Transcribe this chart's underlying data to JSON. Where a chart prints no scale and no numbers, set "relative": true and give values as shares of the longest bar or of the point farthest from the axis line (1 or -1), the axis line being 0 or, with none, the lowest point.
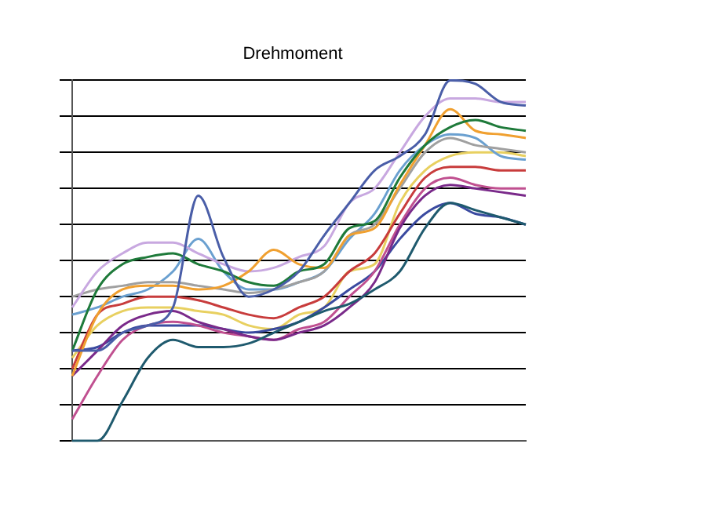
{
  "chart_data": {
    "type": "line",
    "title": "Drehmoment",
    "relative": true,
    "grid": "y",
    "legend": false,
    "categories": [
      null,
      null,
      null,
      null,
      null,
      null,
      null,
      null,
      null,
      null,
      null,
      null,
      null,
      null,
      null,
      null,
      null,
      null,
      null
    ],
    "series": [
      {
        "color": "#4a5ea8",
        "values": [
          0.25,
          0.25,
          0.3,
          0.32,
          0.37,
          0.68,
          0.51,
          0.4,
          0.42,
          0.47,
          0.57,
          0.66,
          0.75,
          0.79,
          0.85,
          1.0,
          0.99,
          0.94,
          0.93
        ]
      },
      {
        "color": "#1f5a6e",
        "values": [
          0.0,
          0.0,
          0.11,
          0.23,
          0.28,
          0.26,
          0.26,
          0.27,
          0.3,
          0.33,
          0.36,
          0.38,
          0.42,
          0.47,
          0.59,
          0.66,
          0.64,
          0.62,
          0.6
        ]
      },
      {
        "color": "#1e7a3a",
        "values": [
          0.25,
          0.42,
          0.49,
          0.51,
          0.52,
          0.49,
          0.47,
          0.44,
          0.43,
          0.47,
          0.49,
          0.59,
          0.61,
          0.73,
          0.82,
          0.87,
          0.89,
          0.87,
          0.86
        ]
      },
      {
        "color": "#f0a030",
        "values": [
          0.18,
          0.35,
          0.42,
          0.43,
          0.43,
          0.42,
          0.43,
          0.47,
          0.53,
          0.49,
          0.48,
          0.57,
          0.59,
          0.71,
          0.82,
          0.92,
          0.86,
          0.85,
          0.84
        ]
      },
      {
        "color": "#c8a8e0",
        "values": [
          0.37,
          0.47,
          0.52,
          0.55,
          0.55,
          0.52,
          0.49,
          0.47,
          0.48,
          0.51,
          0.54,
          0.66,
          0.7,
          0.8,
          0.9,
          0.95,
          0.95,
          0.94,
          0.94
        ]
      },
      {
        "color": "#a0a0a0",
        "values": [
          0.4,
          0.42,
          0.43,
          0.44,
          0.44,
          0.43,
          0.42,
          0.41,
          0.42,
          0.44,
          0.47,
          0.57,
          0.6,
          0.7,
          0.8,
          0.84,
          0.82,
          0.81,
          0.8
        ]
      },
      {
        "color": "#c83c3c",
        "values": [
          0.2,
          0.35,
          0.38,
          0.4,
          0.4,
          0.39,
          0.37,
          0.35,
          0.34,
          0.37,
          0.4,
          0.47,
          0.52,
          0.63,
          0.73,
          0.76,
          0.76,
          0.75,
          0.75
        ]
      },
      {
        "color": "#7a2a8a",
        "values": [
          0.18,
          0.25,
          0.32,
          0.35,
          0.36,
          0.33,
          0.31,
          0.29,
          0.28,
          0.3,
          0.32,
          0.37,
          0.44,
          0.59,
          0.68,
          0.71,
          0.7,
          0.69,
          0.68
        ]
      },
      {
        "color": "#c05090",
        "values": [
          0.06,
          0.18,
          0.28,
          0.32,
          0.33,
          0.32,
          0.3,
          0.29,
          0.28,
          0.31,
          0.33,
          0.4,
          0.47,
          0.6,
          0.7,
          0.73,
          0.71,
          0.7,
          0.7
        ]
      },
      {
        "color": "#6aa0d0",
        "values": [
          0.35,
          0.37,
          0.4,
          0.42,
          0.47,
          0.56,
          0.47,
          0.42,
          0.42,
          0.44,
          0.47,
          0.56,
          0.63,
          0.75,
          0.82,
          0.85,
          0.84,
          0.79,
          0.78
        ]
      },
      {
        "color": "#3a4aa0",
        "values": [
          0.25,
          0.26,
          0.3,
          0.32,
          0.32,
          0.32,
          0.31,
          0.3,
          0.31,
          0.33,
          0.37,
          0.42,
          0.47,
          0.56,
          0.63,
          0.66,
          0.63,
          0.62,
          0.6
        ]
      },
      {
        "color": "#e8d060",
        "values": [
          0.23,
          0.32,
          0.36,
          0.37,
          0.37,
          0.36,
          0.35,
          0.32,
          0.31,
          0.35,
          0.37,
          0.47,
          0.49,
          0.66,
          0.75,
          0.79,
          0.8,
          0.8,
          0.79
        ]
      }
    ]
  }
}
